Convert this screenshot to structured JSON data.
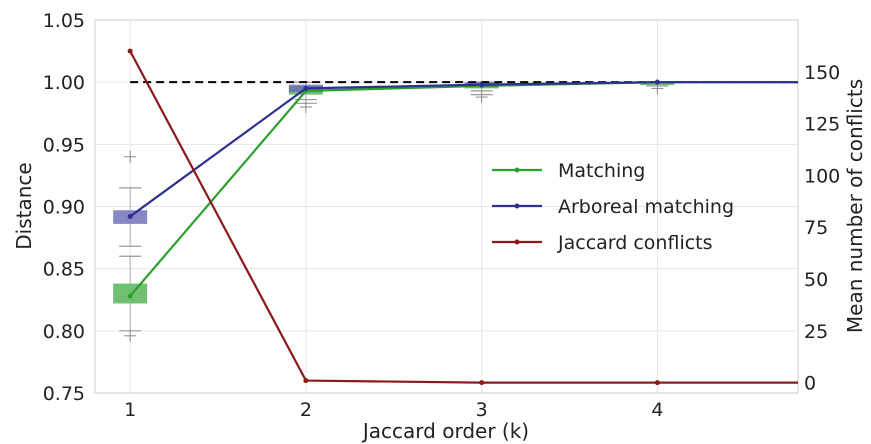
{
  "chart_data": {
    "type": "line",
    "xlabel": "Jaccard order (k)",
    "ylabel": "Distance",
    "y2label": "Mean number of conflicts",
    "x_ticks": [
      1,
      2,
      3,
      4
    ],
    "xlim": [
      0.8,
      4.8
    ],
    "ylim": [
      0.75,
      1.05
    ],
    "y_ticks": [
      "0.75",
      "0.80",
      "0.85",
      "0.90",
      "0.95",
      "1.00",
      "1.05"
    ],
    "y2lim": [
      -5,
      175
    ],
    "y2_ticks": [
      "0",
      "25",
      "50",
      "75",
      "100",
      "125",
      "150"
    ],
    "grid": true,
    "legend_position": "right",
    "reference_line": {
      "y": 1.0,
      "style": "dashed",
      "color": "#000000"
    },
    "series": [
      {
        "name": "Matching",
        "axis": "left",
        "color": "#2ca02c",
        "x": [
          1,
          2,
          3,
          4,
          4.8
        ],
        "y": [
          0.828,
          0.993,
          0.997,
          1.0,
          1.0
        ]
      },
      {
        "name": "Arboreal matching",
        "axis": "left",
        "color": "#2e3192",
        "x": [
          1,
          2,
          3,
          4,
          4.8
        ],
        "y": [
          0.892,
          0.995,
          0.998,
          1.0,
          1.0
        ]
      },
      {
        "name": "Jaccard conflicts",
        "axis": "right",
        "color": "#8b1a1a",
        "x": [
          1,
          2,
          3,
          4,
          4.8
        ],
        "y": [
          160,
          1,
          0,
          0,
          0
        ]
      }
    ],
    "boxes": [
      {
        "series": "Matching",
        "x": 1,
        "q1": 0.822,
        "q3": 0.838,
        "whisker_low": 0.8,
        "whisker_high": 0.86,
        "outliers": [
          0.796
        ],
        "color": "#4caf50"
      },
      {
        "series": "Arboreal matching",
        "x": 1,
        "q1": 0.886,
        "q3": 0.897,
        "whisker_low": 0.868,
        "whisker_high": 0.915,
        "outliers": [
          0.94
        ],
        "color": "#6a6ab8"
      },
      {
        "series": "Matching",
        "x": 2,
        "q1": 0.99,
        "q3": 0.997,
        "whisker_low": 0.983,
        "whisker_high": 1.0,
        "outliers": [
          0.98
        ],
        "color": "#4caf50"
      },
      {
        "series": "Arboreal matching",
        "x": 2,
        "q1": 0.992,
        "q3": 0.998,
        "whisker_low": 0.986,
        "whisker_high": 1.0,
        "outliers": [],
        "color": "#6a6ab8"
      },
      {
        "series": "Matching",
        "x": 3,
        "q1": 0.995,
        "q3": 0.999,
        "whisker_low": 0.99,
        "whisker_high": 1.0,
        "outliers": [
          0.988
        ],
        "color": "#4caf50"
      },
      {
        "series": "Arboreal matching",
        "x": 3,
        "q1": 0.996,
        "q3": 1.0,
        "whisker_low": 0.993,
        "whisker_high": 1.0,
        "outliers": [],
        "color": "#6a6ab8"
      },
      {
        "series": "Matching",
        "x": 4,
        "q1": 0.999,
        "q3": 1.0,
        "whisker_low": 0.997,
        "whisker_high": 1.0,
        "outliers": [
          0.995
        ],
        "color": "#4caf50"
      }
    ]
  }
}
